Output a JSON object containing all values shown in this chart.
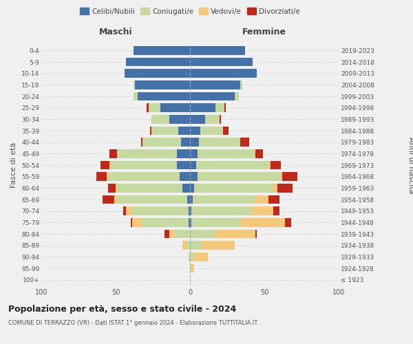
{
  "age_groups": [
    "100+",
    "95-99",
    "90-94",
    "85-89",
    "80-84",
    "75-79",
    "70-74",
    "65-69",
    "60-64",
    "55-59",
    "50-54",
    "45-49",
    "40-44",
    "35-39",
    "30-34",
    "25-29",
    "20-24",
    "15-19",
    "10-14",
    "5-9",
    "0-4"
  ],
  "birth_years": [
    "≤ 1923",
    "1924-1928",
    "1929-1933",
    "1934-1938",
    "1939-1943",
    "1944-1948",
    "1949-1953",
    "1954-1958",
    "1959-1963",
    "1964-1968",
    "1969-1973",
    "1974-1978",
    "1979-1983",
    "1984-1988",
    "1989-1993",
    "1994-1998",
    "1999-2003",
    "2004-2008",
    "2009-2013",
    "2014-2018",
    "2019-2023"
  ],
  "maschi": {
    "celibi": [
      0,
      0,
      0,
      0,
      0,
      1,
      1,
      2,
      5,
      7,
      9,
      9,
      6,
      8,
      14,
      20,
      35,
      37,
      44,
      43,
      38
    ],
    "coniugati": [
      0,
      0,
      1,
      3,
      10,
      31,
      38,
      47,
      44,
      48,
      44,
      40,
      26,
      18,
      12,
      8,
      3,
      1,
      0,
      0,
      0
    ],
    "vedovi": [
      0,
      0,
      0,
      2,
      4,
      7,
      4,
      2,
      1,
      1,
      1,
      0,
      0,
      0,
      0,
      0,
      0,
      0,
      0,
      0,
      0
    ],
    "divorziati": [
      0,
      0,
      0,
      0,
      3,
      1,
      2,
      8,
      5,
      7,
      6,
      5,
      1,
      1,
      0,
      1,
      0,
      0,
      0,
      0,
      0
    ]
  },
  "femmine": {
    "nubili": [
      0,
      0,
      0,
      0,
      0,
      1,
      1,
      2,
      3,
      5,
      4,
      5,
      6,
      7,
      10,
      17,
      30,
      34,
      45,
      42,
      37
    ],
    "coniugate": [
      0,
      1,
      3,
      8,
      17,
      33,
      40,
      42,
      53,
      56,
      49,
      39,
      28,
      15,
      10,
      6,
      3,
      1,
      0,
      0,
      0
    ],
    "vedove": [
      0,
      2,
      9,
      22,
      27,
      30,
      15,
      9,
      3,
      1,
      1,
      0,
      0,
      0,
      0,
      0,
      0,
      0,
      0,
      0,
      0
    ],
    "divorziate": [
      0,
      0,
      0,
      0,
      1,
      4,
      4,
      7,
      10,
      10,
      7,
      5,
      6,
      4,
      1,
      1,
      0,
      0,
      0,
      0,
      0
    ]
  },
  "colors": {
    "celibi": "#4472a8",
    "coniugati": "#c5d9a0",
    "vedovi": "#f5c97a",
    "divorziati": "#c0281c"
  },
  "xlim": 100,
  "title": "Popolazione per età, sesso e stato civile - 2024",
  "subtitle": "COMUNE DI TERRAZZO (VR) - Dati ISTAT 1° gennaio 2024 - Elaborazione TUTTITALIA.IT",
  "ylabel_left": "Fasce di età",
  "ylabel_right": "Anni di nascita",
  "xlabel_left": "Maschi",
  "xlabel_right": "Femmine",
  "legend_labels": [
    "Celibi/Nubili",
    "Coniugati/e",
    "Vedovi/e",
    "Divorziati/e"
  ],
  "bg_color": "#f0f0f0"
}
